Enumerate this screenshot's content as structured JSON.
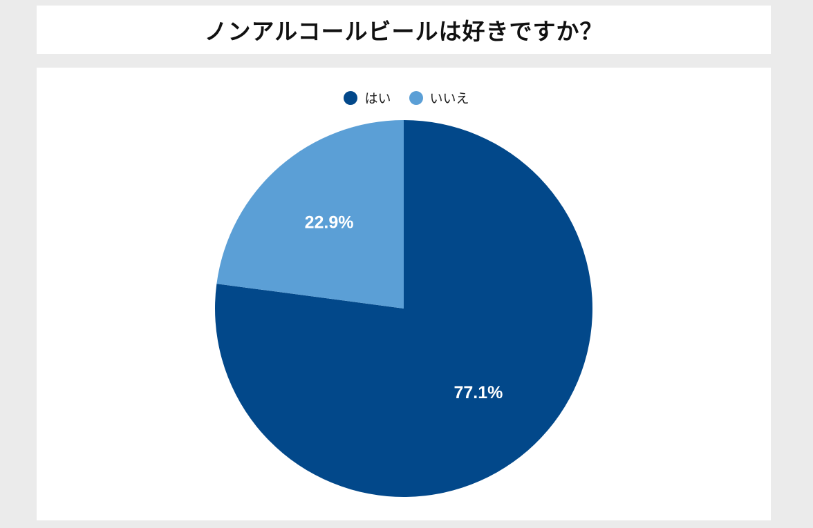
{
  "title": "ノンアルコールビールは好きですか？",
  "chart_data": {
    "type": "pie",
    "title": "ノンアルコールビールは好きですか？",
    "legend_position": "top-center",
    "slices": [
      {
        "label": "はい",
        "value": 77.1,
        "display": "77.1%",
        "color": "#02488a"
      },
      {
        "label": "いいえ",
        "value": 22.9,
        "display": "22.9%",
        "color": "#5b9fd6"
      }
    ]
  }
}
